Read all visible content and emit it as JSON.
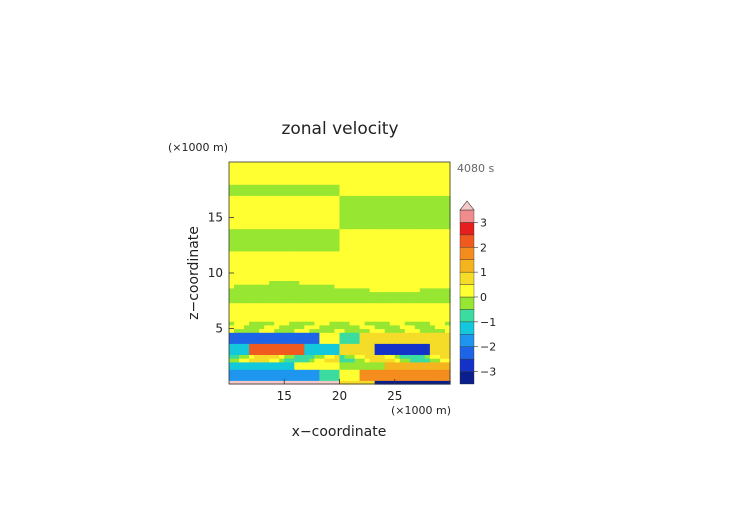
{
  "chart_data": {
    "type": "heatmap",
    "title": "zonal velocity",
    "xlabel": "x−coordinate",
    "ylabel": "z−coordinate",
    "x_unit": "(×1000 m)",
    "y_unit": "(×1000 m)",
    "time_label": "4080 s",
    "xlim": [
      10,
      30
    ],
    "ylim": [
      0,
      20
    ],
    "x_ticks": [
      {
        "value": 15,
        "label": "15"
      },
      {
        "value": 20,
        "label": "20"
      },
      {
        "value": 25,
        "label": "25"
      }
    ],
    "y_ticks": [
      {
        "value": 5,
        "label": "5"
      },
      {
        "value": 10,
        "label": "10"
      },
      {
        "value": 15,
        "label": "15"
      }
    ],
    "colorbar": {
      "extend_max": true,
      "levels": [
        -3.5,
        -3,
        -2.5,
        -2,
        -1.5,
        -1,
        -0.5,
        0,
        0.5,
        1,
        1.5,
        2,
        2.5,
        3,
        3.5
      ],
      "colors": [
        "#0a1e8c",
        "#1432c8",
        "#1e64e6",
        "#1e96f0",
        "#14c8dc",
        "#3cdca0",
        "#96e632",
        "#ffff32",
        "#f5dc28",
        "#f5b41e",
        "#f58c1e",
        "#f05a1e",
        "#e61e1e",
        "#f08c8c",
        "#f5c8c8"
      ],
      "tick_labels": [
        {
          "value": 3,
          "label": "3"
        },
        {
          "value": 2,
          "label": "2"
        },
        {
          "value": 1,
          "label": "1"
        },
        {
          "value": 0,
          "label": "0"
        },
        {
          "value": -1,
          "label": "−1"
        },
        {
          "value": -2,
          "label": "−2"
        },
        {
          "value": -3,
          "label": "−3"
        }
      ]
    },
    "field_description": {
      "upper_bands": [
        {
          "z0": 0.9,
          "z1": 1.0,
          "value": 0.2
        },
        {
          "z0": 0.85,
          "z1": 0.9,
          "value": -0.2
        },
        {
          "z0": 0.7,
          "z1": 0.85,
          "value": 0.2
        },
        {
          "z0": 0.6,
          "z1": 0.7,
          "value": -0.2
        },
        {
          "z0": 0.52,
          "z1": 0.6,
          "value": 0.2
        },
        {
          "z0": 0.44,
          "z1": 0.52,
          "value": 0.2
        },
        {
          "z0": 0.37,
          "z1": 0.44,
          "value": -0.2
        },
        {
          "z0": 0.28,
          "z1": 0.37,
          "value": 0.2
        }
      ]
    }
  }
}
